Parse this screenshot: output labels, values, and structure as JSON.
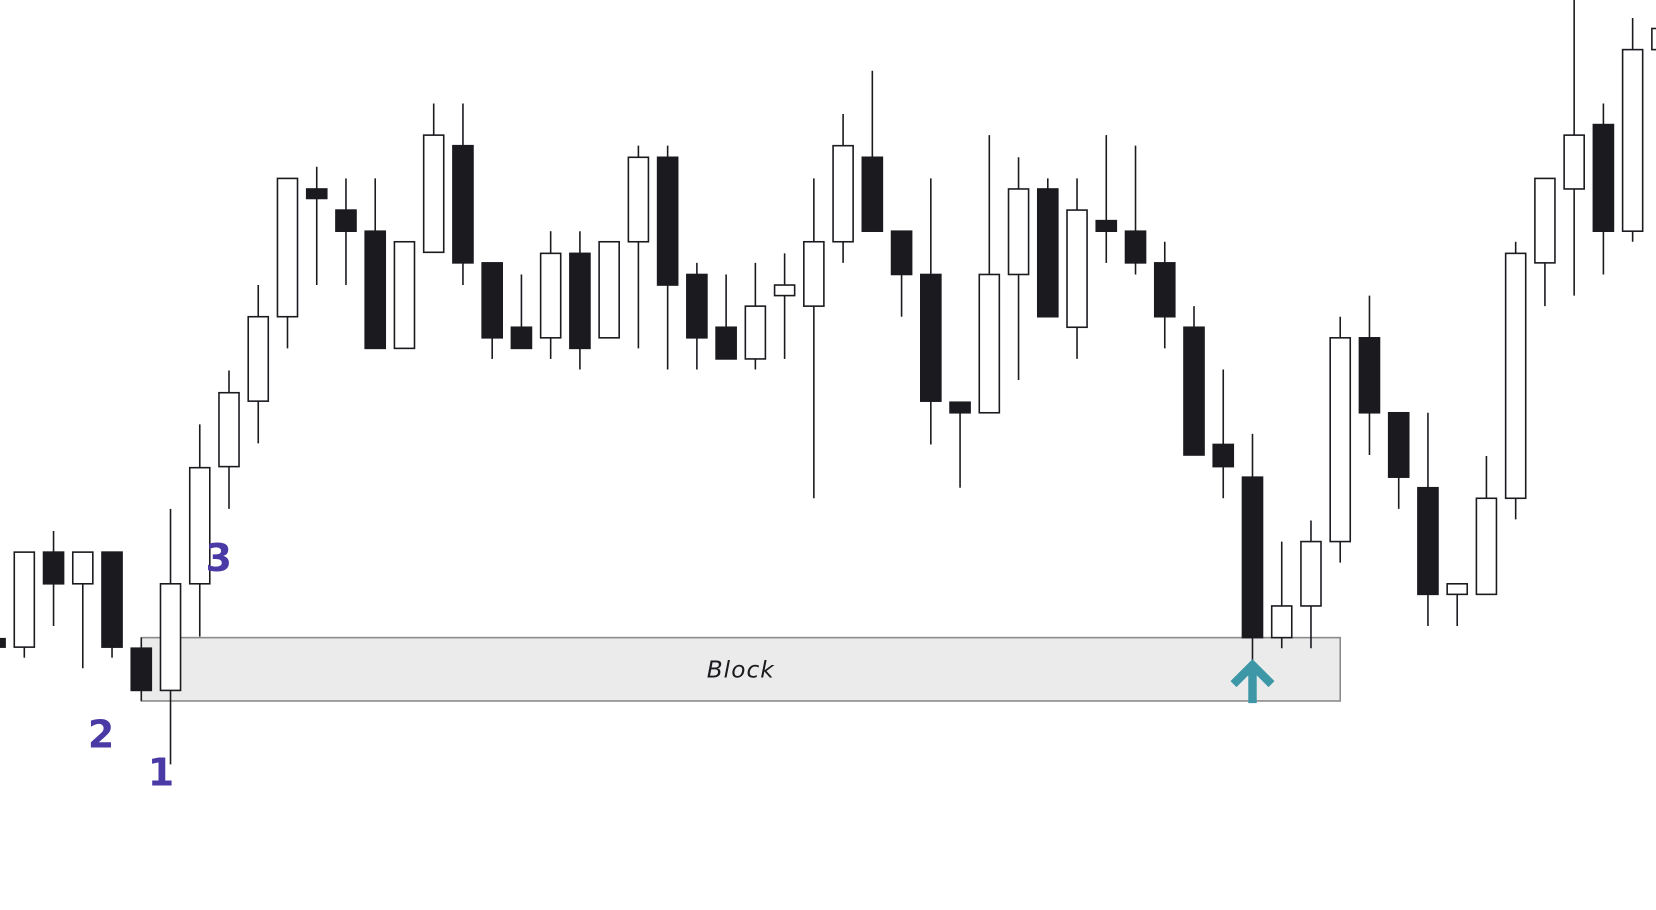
{
  "chart_data": {
    "type": "candlestick",
    "ylim": [
      0,
      862
    ],
    "up_color": "#ffffff",
    "down_color": "#1a1a1f",
    "edge_color": "#1a1a1f",
    "open": [
      257,
      249,
      339,
      309,
      339,
      248,
      208,
      309,
      420,
      482,
      562,
      683,
      663,
      643,
      532,
      623,
      724,
      613,
      552,
      542,
      622,
      542,
      633,
      713,
      602,
      552,
      522,
      582,
      572,
      633,
      713,
      643,
      602,
      481,
      471,
      602,
      683,
      552,
      653,
      643,
      613,
      552,
      441,
      410,
      258,
      288,
      349,
      542,
      471,
      400,
      299,
      299,
      390,
      613,
      683,
      744,
      643,
      815
    ],
    "high": [
      257,
      339,
      359,
      339,
      339,
      258,
      380,
      460,
      511,
      592,
      693,
      704,
      693,
      693,
      633,
      764,
      764,
      613,
      602,
      643,
      643,
      633,
      724,
      724,
      613,
      602,
      613,
      622,
      693,
      754,
      795,
      643,
      693,
      481,
      734,
      713,
      693,
      693,
      734,
      724,
      633,
      572,
      512,
      451,
      349,
      369,
      562,
      582,
      471,
      471,
      309,
      430,
      633,
      693,
      862,
      764,
      845,
      835
    ],
    "low": [
      249,
      239,
      269,
      229,
      239,
      198,
      138,
      259,
      380,
      442,
      532,
      592,
      592,
      532,
      532,
      623,
      592,
      522,
      532,
      522,
      512,
      542,
      532,
      512,
      512,
      522,
      512,
      522,
      390,
      613,
      643,
      562,
      441,
      400,
      471,
      502,
      562,
      522,
      613,
      602,
      532,
      431,
      390,
      228,
      248,
      248,
      329,
      431,
      380,
      269,
      269,
      299,
      370,
      572,
      582,
      602,
      633,
      815
    ],
    "close": [
      249,
      339,
      309,
      339,
      249,
      208,
      309,
      419,
      490,
      562,
      693,
      674,
      643,
      532,
      633,
      734,
      613,
      542,
      532,
      622,
      532,
      633,
      713,
      592,
      542,
      522,
      572,
      592,
      633,
      724,
      643,
      602,
      482,
      471,
      602,
      683,
      562,
      663,
      643,
      613,
      562,
      431,
      420,
      258,
      288,
      349,
      542,
      471,
      410,
      299,
      309,
      390,
      622,
      693,
      734,
      643,
      815,
      835
    ],
    "zone": {
      "label": "Block",
      "start": 5,
      "end": 46,
      "low": 198,
      "high": 258,
      "color": "#ebebeb"
    },
    "annotations": [
      {
        "text": "1",
        "candle": 6
      },
      {
        "text": "2",
        "candle": 5
      },
      {
        "text": "3",
        "candle": 7
      }
    ],
    "annotation_color": "#4a3aa6",
    "arrow": {
      "candle": 43,
      "color": "#3d97a6"
    }
  }
}
